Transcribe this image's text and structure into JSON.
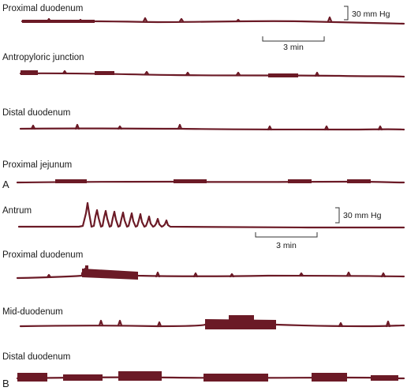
{
  "panel_a": {
    "letter": "A",
    "traces": [
      {
        "label": "Proximal duodenum"
      },
      {
        "label": "Antropyloric junction"
      },
      {
        "label": "Distal duodenum"
      },
      {
        "label": "Proximal jejunum"
      }
    ],
    "pressure_scale": "30 mm Hg",
    "time_scale": "3 min"
  },
  "panel_b": {
    "letter": "B",
    "traces": [
      {
        "label": "Antrum"
      },
      {
        "label": "Proximal duodenum"
      },
      {
        "label": "Mid-duodenum"
      },
      {
        "label": "Distal duodenum"
      }
    ],
    "pressure_scale": "30 mm Hg",
    "time_scale": "3 min"
  },
  "colors": {
    "trace": "#6b1a26",
    "text": "#1a1a1a",
    "scale_bar": "#333333"
  }
}
